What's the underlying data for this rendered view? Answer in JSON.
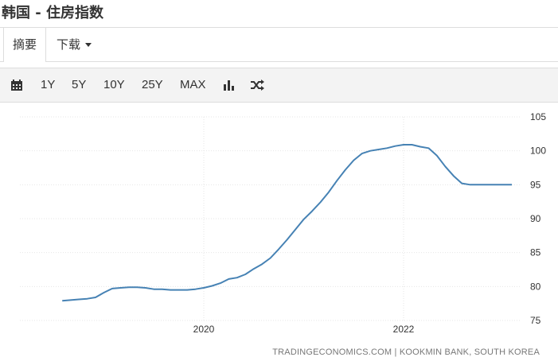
{
  "header": {
    "title": "韩国 - 住房指数"
  },
  "tabs": {
    "summary": "摘要",
    "download": "下载"
  },
  "toolbar": {
    "ranges": [
      "1Y",
      "5Y",
      "10Y",
      "25Y",
      "MAX"
    ],
    "icons": [
      "calendar-icon",
      "bar-chart-icon",
      "shuffle-icon"
    ]
  },
  "credit": "TRADINGECONOMICS.COM | KOOKMIN BANK, SOUTH KOREA",
  "colors": {
    "line": "#4682b4",
    "grid": "#e6e6e6"
  },
  "chart_data": {
    "type": "line",
    "title": "",
    "xlabel": "",
    "ylabel": "",
    "x_ticks": [
      "2020",
      "2022"
    ],
    "y_ticks": [
      75,
      80,
      85,
      90,
      95,
      100,
      105
    ],
    "ylim": [
      75,
      105
    ],
    "grid": "horizontal",
    "y_axis_side": "right",
    "series": [
      {
        "x": [
          "2018-08",
          "2018-09",
          "2018-10",
          "2018-11",
          "2018-12",
          "2019-01",
          "2019-02",
          "2019-03",
          "2019-04",
          "2019-05",
          "2019-06",
          "2019-07",
          "2019-08",
          "2019-09",
          "2019-10",
          "2019-11",
          "2019-12",
          "2020-01",
          "2020-02",
          "2020-03",
          "2020-04",
          "2020-05",
          "2020-06",
          "2020-07",
          "2020-08",
          "2020-09",
          "2020-10",
          "2020-11",
          "2020-12",
          "2021-01",
          "2021-02",
          "2021-03",
          "2021-04",
          "2021-05",
          "2021-06",
          "2021-07",
          "2021-08",
          "2021-09",
          "2021-10",
          "2021-11",
          "2021-12",
          "2022-01",
          "2022-02",
          "2022-03",
          "2022-04",
          "2022-05",
          "2022-06",
          "2022-07",
          "2022-08",
          "2022-09",
          "2022-10",
          "2022-11",
          "2022-12",
          "2023-01",
          "2023-02"
        ],
        "values": [
          77.9,
          78.0,
          78.1,
          78.2,
          78.4,
          79.1,
          79.7,
          79.8,
          79.9,
          79.9,
          79.8,
          79.6,
          79.6,
          79.5,
          79.5,
          79.5,
          79.6,
          79.8,
          80.1,
          80.5,
          81.1,
          81.3,
          81.8,
          82.6,
          83.3,
          84.2,
          85.5,
          86.9,
          88.4,
          89.9,
          91.1,
          92.4,
          93.9,
          95.6,
          97.2,
          98.6,
          99.6,
          100.0,
          100.2,
          100.4,
          100.7,
          100.9,
          100.9,
          100.6,
          100.4,
          99.3,
          97.7,
          96.3,
          95.2,
          95.0,
          95.0,
          95.0,
          95.0,
          95.0,
          95.0
        ]
      }
    ]
  }
}
